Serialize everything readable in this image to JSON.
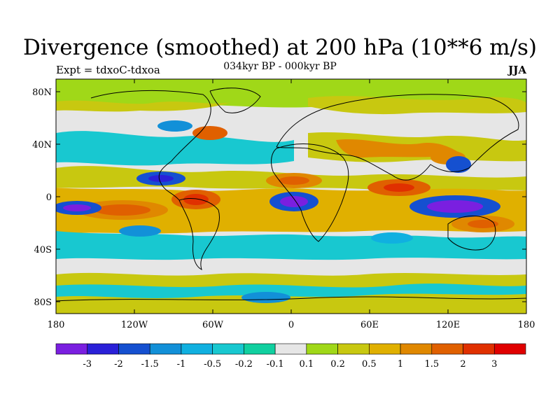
{
  "title": "Divergence (smoothed) at 200 hPa (10**6 m/s)",
  "experiment": "Expt = tdxoC-tdxoa",
  "period": "034kyr BP - 000kyr BP",
  "season": "JJA",
  "axes": {
    "lat_ticks": [
      "80N",
      "40N",
      "0",
      "40S",
      "80S"
    ],
    "lon_ticks": [
      "180",
      "120W",
      "60W",
      "0",
      "60E",
      "120E",
      "180"
    ]
  },
  "colorbar": {
    "labels": [
      "-3",
      "-2",
      "-1.5",
      "-1",
      "-0.5",
      "-0.2",
      "-0.1",
      "0.1",
      "0.2",
      "0.5",
      "1",
      "1.5",
      "2",
      "3"
    ],
    "colors": [
      "#7a1fe0",
      "#2a20d8",
      "#1550d0",
      "#1290d8",
      "#10b0e0",
      "#18c8d0",
      "#10d0a0",
      "#e6e6e6",
      "#a0d818",
      "#c8c810",
      "#e0b000",
      "#e08800",
      "#e06000",
      "#e03000",
      "#e00000"
    ]
  }
}
